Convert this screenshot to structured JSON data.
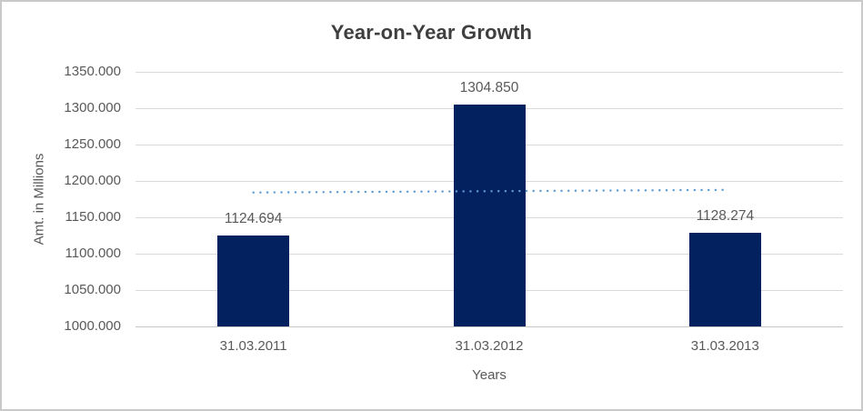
{
  "window": {
    "background_color": "#FFFFFF",
    "border_color": "#C9C9C9"
  },
  "chart_data": {
    "type": "bar",
    "title": "Year-on-Year Growth",
    "categories": [
      "31.03.2011",
      "31.03.2012",
      "31.03.2013"
    ],
    "values": [
      1124.694,
      1304.85,
      1128.274
    ],
    "data_labels": [
      "1124.694",
      "1304.850",
      "1128.274"
    ],
    "xlabel": "Years",
    "ylabel": "Amt. in Millions",
    "ylim": [
      1000,
      1350
    ],
    "ytick_interval": 50,
    "ytick_labels": [
      "1000.000",
      "1050.000",
      "1100.000",
      "1150.000",
      "1200.000",
      "1250.000",
      "1300.000",
      "1350.000"
    ],
    "grid": true,
    "legend": "none",
    "trendline": {
      "type": "linear",
      "style": "dotted",
      "start_value": 1184.1,
      "end_value": 1187.7
    },
    "colors": {
      "bar": "#03215F",
      "trendline": "#5B9BD5",
      "gridline": "#D9D9D9",
      "axis_line": "#C6C6C6",
      "tick_text": "#595959",
      "data_label_text": "#595959",
      "title_text": "#3F3F3F"
    }
  }
}
